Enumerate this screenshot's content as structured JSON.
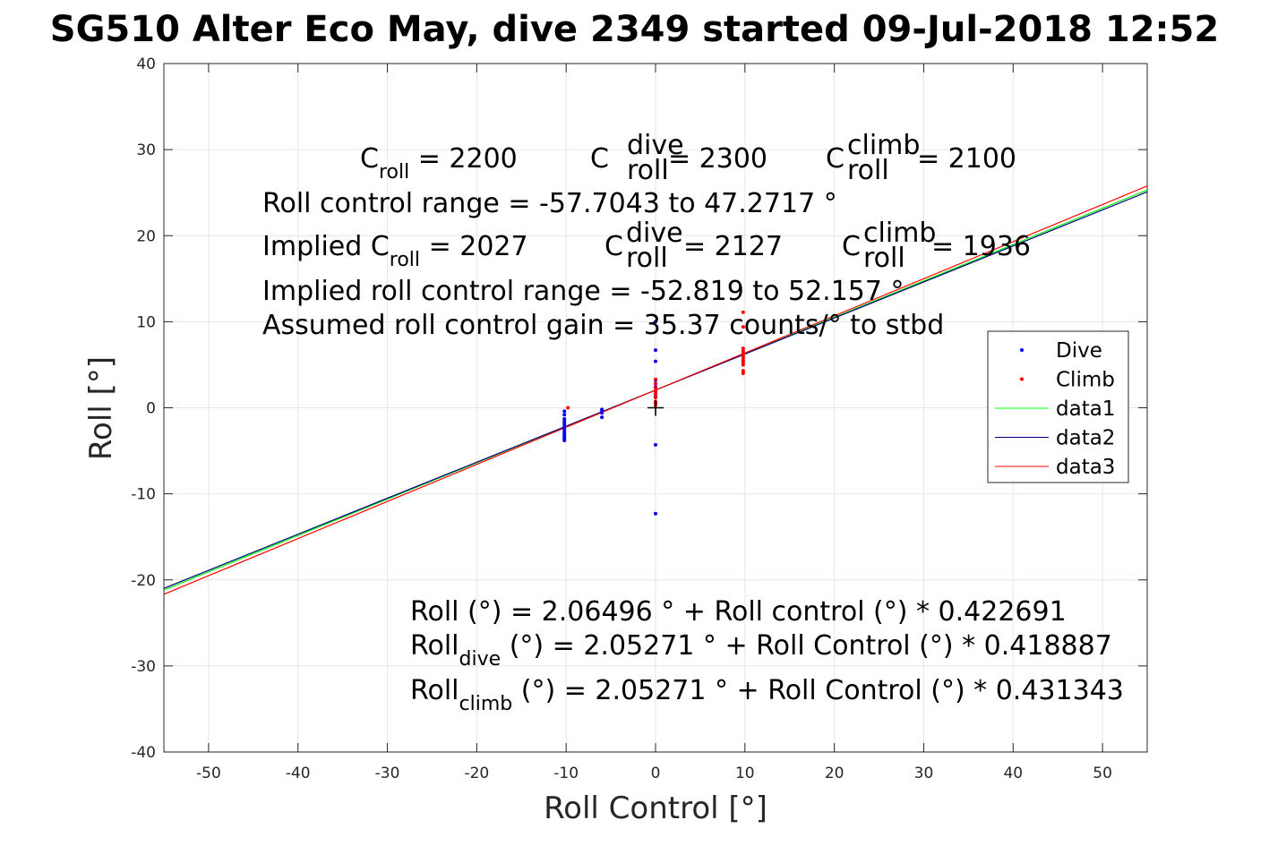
{
  "chart_data": {
    "type": "scatter",
    "title": "SG510 Alter Eco May, dive 2349 started 09-Jul-2018 12:52",
    "xlabel": "Roll Control [°]",
    "ylabel": "Roll [°]",
    "xlim": [
      -55,
      55
    ],
    "ylim": [
      -40,
      40
    ],
    "x_ticks": [
      -50,
      -40,
      -30,
      -20,
      -10,
      0,
      10,
      20,
      30,
      40,
      50
    ],
    "y_ticks": [
      -40,
      -30,
      -20,
      -10,
      0,
      10,
      20,
      30,
      40
    ],
    "grid": true,
    "legend_position": "right",
    "series": [
      {
        "name": "Dive",
        "kind": "points",
        "color": "#0000ff",
        "x": [
          -10.2,
          -10.2,
          -10.2,
          -10.2,
          -10.2,
          -10.2,
          -10.2,
          -10.2,
          -10.2,
          -10.2,
          -10.2,
          -10.2,
          -10.2,
          -6,
          -6,
          -6,
          -6,
          0,
          0,
          0,
          0,
          0,
          0,
          0,
          0,
          0,
          0,
          0
        ],
        "y": [
          -0.4,
          -0.8,
          -1.3,
          -1.6,
          -1.9,
          -2.2,
          -2.5,
          -2.8,
          -3.0,
          -3.2,
          -3.4,
          -3.6,
          -3.8,
          -0.2,
          -0.4,
          -0.6,
          -1.1,
          10.0,
          6.7,
          5.4,
          3.2,
          2.8,
          2.4,
          1.9,
          1.3,
          0.6,
          -4.3,
          -12.3
        ]
      },
      {
        "name": "Climb",
        "kind": "points",
        "color": "#ff0000",
        "x": [
          -9.8,
          0,
          0,
          0,
          0,
          0,
          0,
          0,
          0,
          9.8,
          9.8,
          9.8,
          9.8,
          9.8,
          9.8,
          9.8,
          9.8,
          9.8,
          9.8,
          9.8,
          9.8
        ],
        "y": [
          0.0,
          3.3,
          2.8,
          2.3,
          1.9,
          1.6,
          1.2,
          0.7,
          0.3,
          11.1,
          9.4,
          6.9,
          6.6,
          6.3,
          6.0,
          5.8,
          5.5,
          5.3,
          5.0,
          4.3,
          4.0
        ]
      },
      {
        "name": "data1",
        "kind": "line",
        "color": "#00ff00",
        "x": [
          -55,
          55
        ],
        "y": [
          -21.18,
          25.31
        ]
      },
      {
        "name": "data2",
        "kind": "line",
        "color": "#000080",
        "x": [
          -55,
          55
        ],
        "y": [
          -20.98,
          25.09
        ]
      },
      {
        "name": "data3",
        "kind": "line",
        "color": "#ff0000",
        "x": [
          -55,
          55
        ],
        "y": [
          -21.67,
          25.78
        ]
      }
    ],
    "marker": {
      "symbol": "+",
      "x": 0,
      "y": 0,
      "color": "#000000"
    }
  },
  "annotations": {
    "top_line1": {
      "c_roll": "C",
      "c_roll_sub": "roll",
      "c_roll_val": " = 2200",
      "c_dive": "C",
      "c_dive_sup": "dive",
      "c_dive_sub": "roll",
      "c_dive_val": " = 2300",
      "c_climb": "C",
      "c_climb_sup": "climb",
      "c_climb_sub": "roll",
      "c_climb_val": " = 2100"
    },
    "top_line2": "Roll control range = -57.7043 to 47.2717 °",
    "top_line3": {
      "implied_prefix": "Implied C",
      "implied_sub": "roll",
      "implied_val": " = 2027",
      "c_dive": "C",
      "c_dive_sup": "dive",
      "c_dive_sub": "roll",
      "c_dive_val": " = 2127",
      "c_climb": "C",
      "c_climb_sup": "climb",
      "c_climb_sub": "roll",
      "c_climb_val": " = 1936"
    },
    "top_line4": "Implied roll control range = -52.819 to 52.157 °",
    "top_line5": "Assumed roll control gain = 35.37 counts/° to stbd",
    "bottom_line1": "Roll (°) = 2.06496 ° + Roll control (°) * 0.422691",
    "bottom_line2": {
      "prefix": "Roll",
      "sub": "dive",
      "rest": " (°) = 2.05271 ° + Roll Control (°) * 0.418887"
    },
    "bottom_line3": {
      "prefix": "Roll",
      "sub": "climb",
      "rest": " (°) = 2.05271 ° + Roll Control (°) * 0.431343"
    }
  }
}
